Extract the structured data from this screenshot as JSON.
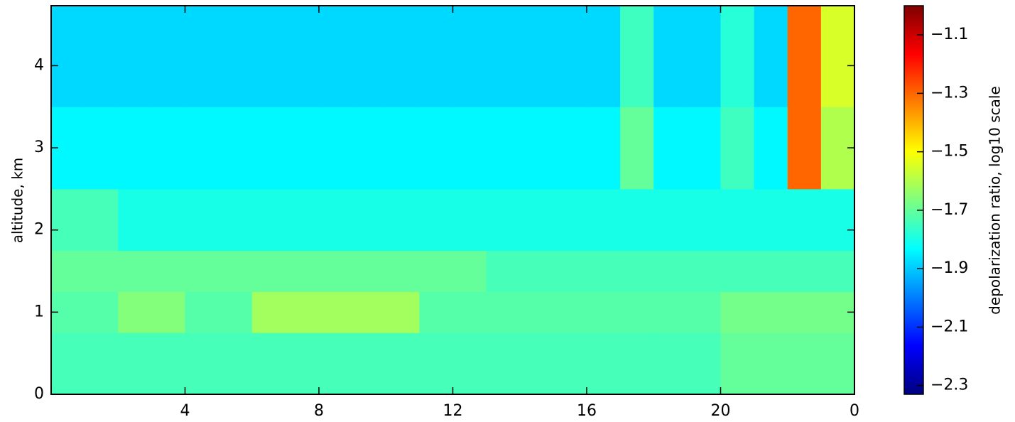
{
  "chart_data": {
    "type": "heatmap",
    "y_label": "altitude, km",
    "colorbar_label": "depolarization ratio, log10 scale",
    "x_edges": [
      0,
      1,
      2,
      3,
      4,
      5,
      6,
      7,
      8,
      9,
      10,
      11,
      12,
      13,
      14,
      15,
      16,
      17,
      18,
      19,
      20,
      21,
      22,
      23,
      24
    ],
    "y_edges": [
      0,
      0.75,
      1.25,
      1.75,
      2.5,
      3.5,
      4.73
    ],
    "z": [
      [
        -1.74,
        -1.74,
        -1.74,
        -1.74,
        -1.74,
        -1.74,
        -1.74,
        -1.74,
        -1.74,
        -1.74,
        -1.74,
        -1.74,
        -1.74,
        -1.74,
        -1.74,
        -1.74,
        -1.74,
        -1.74,
        -1.74,
        -1.74,
        -1.7,
        -1.7,
        -1.7,
        -1.7
      ],
      [
        -1.72,
        -1.72,
        -1.66,
        -1.66,
        -1.72,
        -1.72,
        -1.62,
        -1.62,
        -1.62,
        -1.62,
        -1.62,
        -1.72,
        -1.72,
        -1.72,
        -1.72,
        -1.72,
        -1.72,
        -1.72,
        -1.72,
        -1.72,
        -1.68,
        -1.68,
        -1.68,
        -1.68
      ],
      [
        -1.7,
        -1.7,
        -1.7,
        -1.7,
        -1.7,
        -1.7,
        -1.7,
        -1.7,
        -1.7,
        -1.7,
        -1.7,
        -1.7,
        -1.7,
        -1.74,
        -1.74,
        -1.74,
        -1.74,
        -1.74,
        -1.74,
        -1.74,
        -1.74,
        -1.74,
        -1.74,
        -1.74
      ],
      [
        -1.74,
        -1.74,
        -1.8,
        -1.8,
        -1.8,
        -1.8,
        -1.8,
        -1.8,
        -1.8,
        -1.8,
        -1.8,
        -1.8,
        -1.8,
        -1.8,
        -1.8,
        -1.8,
        -1.8,
        -1.8,
        -1.8,
        -1.8,
        -1.8,
        -1.8,
        -1.8,
        -1.8
      ],
      [
        -1.84,
        -1.84,
        -1.84,
        -1.84,
        -1.84,
        -1.84,
        -1.84,
        -1.84,
        -1.84,
        -1.84,
        -1.84,
        -1.84,
        -1.84,
        -1.84,
        -1.84,
        -1.84,
        -1.84,
        -1.7,
        -1.84,
        -1.84,
        -1.75,
        -1.84,
        -1.3,
        -1.6
      ],
      [
        -1.88,
        -1.88,
        -1.88,
        -1.88,
        -1.88,
        -1.88,
        -1.88,
        -1.88,
        -1.88,
        -1.88,
        -1.88,
        -1.88,
        -1.88,
        -1.88,
        -1.88,
        -1.88,
        -1.88,
        -1.75,
        -1.88,
        -1.88,
        -1.78,
        -1.88,
        -1.3,
        -1.55
      ]
    ],
    "xlim": [
      0,
      24
    ],
    "xticks": [
      4,
      8,
      12,
      16,
      20,
      {
        "value": 24,
        "label": "0"
      }
    ],
    "ylim": [
      0,
      4.73
    ],
    "yticks": [
      0,
      1,
      2,
      3,
      4
    ],
    "clim": [
      -2.33,
      -1.0
    ],
    "cticks": [
      {
        "value": -2.3,
        "label": "−2.3"
      },
      {
        "value": -2.1,
        "label": "−2.1"
      },
      {
        "value": -1.9,
        "label": "−1.9"
      },
      {
        "value": -1.7,
        "label": "−1.7"
      },
      {
        "value": -1.5,
        "label": "−1.5"
      },
      {
        "value": -1.3,
        "label": "−1.3"
      },
      {
        "value": -1.1,
        "label": "−1.1"
      }
    ],
    "colormap": [
      "#00007f",
      "#0000ff",
      "#007fff",
      "#00ffff",
      "#7fff7f",
      "#ffff00",
      "#ff7f00",
      "#ff0000",
      "#7f0000"
    ]
  }
}
